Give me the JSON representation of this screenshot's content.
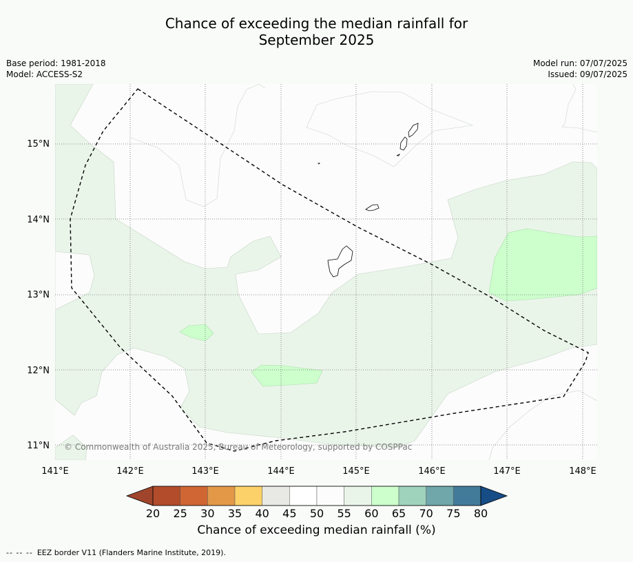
{
  "title_line1": "Chance of exceeding the median rainfall for",
  "title_line2": "September 2025",
  "meta": {
    "base_period": "Base period: 1981-2018",
    "model": "Model: ACCESS-S2",
    "model_run": "Model run: 07/07/2025",
    "issued": "Issued: 09/07/2025"
  },
  "map": {
    "lon_labels": [
      "141°E",
      "142°E",
      "143°E",
      "144°E",
      "145°E",
      "146°E",
      "147°E",
      "148°E"
    ],
    "lat_labels": [
      "15°N",
      "14°N",
      "13°N",
      "12°N",
      "11°N"
    ],
    "copyright": "© Commonwealth of Australia 2025, Bureau of Meteorology, supported by COSPPac",
    "colors": {
      "c55_60": "#eaf5ea",
      "c60_65": "#ccffcc",
      "c50_55": "#fbfcfb"
    }
  },
  "colorbar": {
    "ticks": [
      "20",
      "25",
      "30",
      "35",
      "40",
      "45",
      "50",
      "55",
      "60",
      "65",
      "70",
      "75",
      "80"
    ],
    "colors": [
      "#b24c2b",
      "#cf6633",
      "#e39848",
      "#fcd16a",
      "#e8e9e4",
      "#ffffff",
      "#fbfcfb",
      "#eaf5ea",
      "#ccffcc",
      "#9fd3bc",
      "#6fa7aa",
      "#427b9a"
    ],
    "under_color": "#a0452c",
    "over_color": "#164d87",
    "label": "Chance of exceeding median rainfall (%)"
  },
  "footer": {
    "dashes": "-- -- --",
    "text": "EEZ border V11 (Flanders Marine Institute, 2019)."
  }
}
